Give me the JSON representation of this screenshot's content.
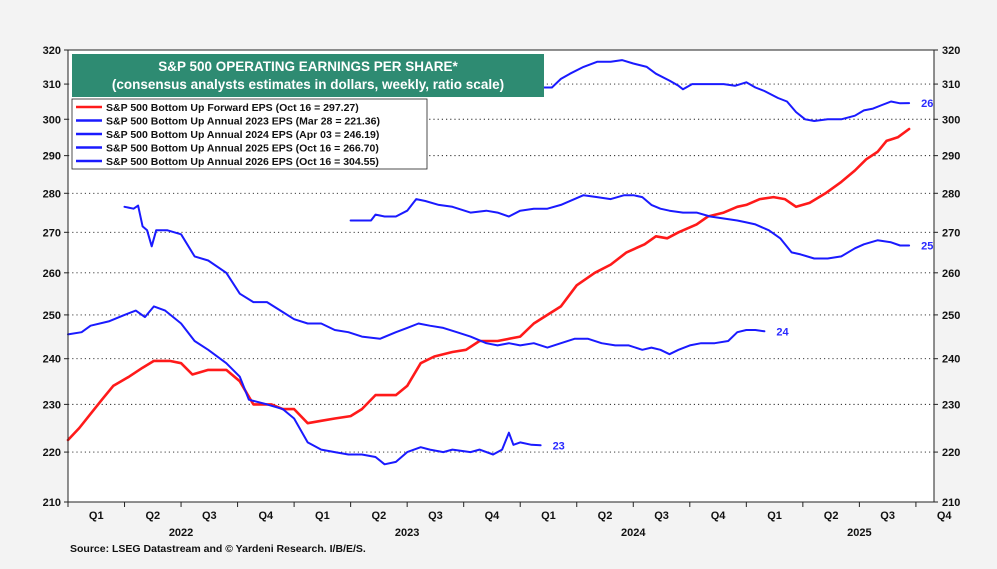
{
  "colors": {
    "forward": "#ff1a1a",
    "annual": "#1a1aff",
    "title_bg": "#2e8b72",
    "label": "#2a2aff"
  },
  "chart_data": {
    "type": "line",
    "title": "S&P 500 OPERATING EARNINGS PER SHARE*",
    "subtitle": "(consensus analysts estimates in dollars, weekly, ratio scale)",
    "source": "Source: LSEG Datastream and © Yardeni Research. I/B/E/S.",
    "ylim": [
      210,
      320
    ],
    "yticks": [
      210,
      220,
      230,
      240,
      250,
      260,
      270,
      280,
      290,
      300,
      310,
      320
    ],
    "y_scale": "ratio",
    "xlim": [
      2022.0,
      2025.83
    ],
    "quarters": [
      {
        "label": "Q1",
        "x": 2022.125
      },
      {
        "label": "Q2",
        "x": 2022.375
      },
      {
        "label": "Q3",
        "x": 2022.625
      },
      {
        "label": "Q4",
        "x": 2022.875
      },
      {
        "label": "Q1",
        "x": 2023.125
      },
      {
        "label": "Q2",
        "x": 2023.375
      },
      {
        "label": "Q3",
        "x": 2023.625
      },
      {
        "label": "Q4",
        "x": 2023.875
      },
      {
        "label": "Q1",
        "x": 2024.125
      },
      {
        "label": "Q2",
        "x": 2024.375
      },
      {
        "label": "Q3",
        "x": 2024.625
      },
      {
        "label": "Q4",
        "x": 2024.875
      },
      {
        "label": "Q1",
        "x": 2025.125
      },
      {
        "label": "Q2",
        "x": 2025.375
      },
      {
        "label": "Q3",
        "x": 2025.625
      },
      {
        "label": "Q4",
        "x": 2025.875
      }
    ],
    "quarter_bounds": [
      2022.0,
      2022.25,
      2022.5,
      2022.75,
      2023.0,
      2023.25,
      2023.5,
      2023.75,
      2024.0,
      2024.25,
      2024.5,
      2024.75,
      2025.0,
      2025.25,
      2025.5,
      2025.75
    ],
    "years": [
      {
        "label": "2022",
        "x": 2022.5
      },
      {
        "label": "2023",
        "x": 2023.5
      },
      {
        "label": "2024",
        "x": 2024.5
      },
      {
        "label": "2025",
        "x": 2025.5
      }
    ],
    "legend_placement": "top-left",
    "series": [
      {
        "name": "S&P 500 Bottom Up Forward EPS (Oct 16 = 297.27)",
        "color": "#ff1a1a",
        "end_label": "",
        "points": [
          [
            2022.0,
            222.5
          ],
          [
            2022.05,
            225
          ],
          [
            2022.1,
            228
          ],
          [
            2022.15,
            231
          ],
          [
            2022.2,
            234
          ],
          [
            2022.27,
            236
          ],
          [
            2022.33,
            238
          ],
          [
            2022.38,
            239.5
          ],
          [
            2022.45,
            239.5
          ],
          [
            2022.5,
            239
          ],
          [
            2022.55,
            236.5
          ],
          [
            2022.62,
            237.5
          ],
          [
            2022.7,
            237.5
          ],
          [
            2022.76,
            235
          ],
          [
            2022.82,
            230
          ],
          [
            2022.9,
            230
          ],
          [
            2022.95,
            229
          ],
          [
            2023.0,
            229
          ],
          [
            2023.06,
            226
          ],
          [
            2023.12,
            226.5
          ],
          [
            2023.18,
            227
          ],
          [
            2023.25,
            227.5
          ],
          [
            2023.3,
            229
          ],
          [
            2023.36,
            232
          ],
          [
            2023.45,
            232
          ],
          [
            2023.5,
            234
          ],
          [
            2023.56,
            239
          ],
          [
            2023.62,
            240.5
          ],
          [
            2023.7,
            241.5
          ],
          [
            2023.76,
            242
          ],
          [
            2023.82,
            244
          ],
          [
            2023.9,
            244
          ],
          [
            2024.0,
            245
          ],
          [
            2024.06,
            248
          ],
          [
            2024.12,
            250
          ],
          [
            2024.18,
            252
          ],
          [
            2024.25,
            257
          ],
          [
            2024.33,
            260
          ],
          [
            2024.4,
            262
          ],
          [
            2024.47,
            265
          ],
          [
            2024.55,
            267
          ],
          [
            2024.6,
            269
          ],
          [
            2024.65,
            268.5
          ],
          [
            2024.7,
            270
          ],
          [
            2024.78,
            272
          ],
          [
            2024.83,
            274
          ],
          [
            2024.9,
            275
          ],
          [
            2024.96,
            276.5
          ],
          [
            2025.0,
            277
          ],
          [
            2025.06,
            278.5
          ],
          [
            2025.12,
            279
          ],
          [
            2025.17,
            278.5
          ],
          [
            2025.22,
            276.5
          ],
          [
            2025.28,
            277.5
          ],
          [
            2025.35,
            280
          ],
          [
            2025.42,
            283
          ],
          [
            2025.48,
            286
          ],
          [
            2025.53,
            289
          ],
          [
            2025.58,
            291
          ],
          [
            2025.62,
            294
          ],
          [
            2025.67,
            295
          ],
          [
            2025.72,
            297.3
          ]
        ]
      },
      {
        "name": "S&P 500 Bottom Up Annual 2023 EPS (Mar 28 = 221.36)",
        "color": "#1a1aff",
        "end_label": "23",
        "points": [
          [
            2022.0,
            245.5
          ],
          [
            2022.06,
            246
          ],
          [
            2022.1,
            247.5
          ],
          [
            2022.18,
            248.5
          ],
          [
            2022.25,
            250
          ],
          [
            2022.3,
            251
          ],
          [
            2022.34,
            249.5
          ],
          [
            2022.38,
            252
          ],
          [
            2022.43,
            251
          ],
          [
            2022.5,
            248
          ],
          [
            2022.56,
            244
          ],
          [
            2022.62,
            242
          ],
          [
            2022.7,
            239
          ],
          [
            2022.76,
            236
          ],
          [
            2022.8,
            231
          ],
          [
            2022.88,
            230
          ],
          [
            2022.95,
            229
          ],
          [
            2023.0,
            227
          ],
          [
            2023.06,
            222
          ],
          [
            2023.12,
            220.5
          ],
          [
            2023.18,
            220
          ],
          [
            2023.24,
            219.5
          ],
          [
            2023.3,
            219.5
          ],
          [
            2023.36,
            219
          ],
          [
            2023.4,
            217.5
          ],
          [
            2023.45,
            218
          ],
          [
            2023.5,
            220
          ],
          [
            2023.56,
            221
          ],
          [
            2023.6,
            220.5
          ],
          [
            2023.66,
            220
          ],
          [
            2023.7,
            220.5
          ],
          [
            2023.78,
            220
          ],
          [
            2023.82,
            220.5
          ],
          [
            2023.88,
            219.5
          ],
          [
            2023.92,
            220.5
          ],
          [
            2023.95,
            224
          ],
          [
            2023.97,
            221.5
          ],
          [
            2024.0,
            222
          ],
          [
            2024.05,
            221.5
          ],
          [
            2024.09,
            221.4
          ]
        ]
      },
      {
        "name": "S&P 500 Bottom Up Annual 2024 EPS (Apr 03 = 246.19)",
        "color": "#1a1aff",
        "end_label": "24",
        "points": [
          [
            2022.25,
            276.5
          ],
          [
            2022.29,
            276
          ],
          [
            2022.31,
            276.8
          ],
          [
            2022.33,
            271.5
          ],
          [
            2022.35,
            270.5
          ],
          [
            2022.37,
            266.5
          ],
          [
            2022.39,
            270.5
          ],
          [
            2022.44,
            270.5
          ],
          [
            2022.5,
            269.5
          ],
          [
            2022.56,
            264
          ],
          [
            2022.62,
            263
          ],
          [
            2022.7,
            260
          ],
          [
            2022.76,
            255
          ],
          [
            2022.82,
            253
          ],
          [
            2022.88,
            253
          ],
          [
            2022.94,
            251
          ],
          [
            2023.0,
            249
          ],
          [
            2023.06,
            248
          ],
          [
            2023.12,
            248
          ],
          [
            2023.18,
            246.5
          ],
          [
            2023.24,
            246
          ],
          [
            2023.3,
            245
          ],
          [
            2023.38,
            244.5
          ],
          [
            2023.45,
            246
          ],
          [
            2023.5,
            247
          ],
          [
            2023.55,
            248
          ],
          [
            2023.6,
            247.5
          ],
          [
            2023.66,
            247
          ],
          [
            2023.72,
            246
          ],
          [
            2023.78,
            245
          ],
          [
            2023.85,
            243.5
          ],
          [
            2023.9,
            243
          ],
          [
            2023.95,
            243.5
          ],
          [
            2024.0,
            243
          ],
          [
            2024.06,
            243.5
          ],
          [
            2024.12,
            242.5
          ],
          [
            2024.18,
            243.5
          ],
          [
            2024.24,
            244.5
          ],
          [
            2024.3,
            244.5
          ],
          [
            2024.36,
            243.5
          ],
          [
            2024.42,
            243
          ],
          [
            2024.48,
            243
          ],
          [
            2024.54,
            242
          ],
          [
            2024.58,
            242.5
          ],
          [
            2024.62,
            242
          ],
          [
            2024.66,
            241
          ],
          [
            2024.7,
            242
          ],
          [
            2024.75,
            243
          ],
          [
            2024.8,
            243.5
          ],
          [
            2024.86,
            243.5
          ],
          [
            2024.92,
            244
          ],
          [
            2024.96,
            246
          ],
          [
            2025.0,
            246.5
          ],
          [
            2025.04,
            246.5
          ],
          [
            2025.08,
            246.2
          ]
        ]
      },
      {
        "name": "S&P 500 Bottom Up Annual 2025 EPS (Oct 16 = 266.70)",
        "color": "#1a1aff",
        "end_label": "25",
        "points": [
          [
            2023.25,
            273
          ],
          [
            2023.3,
            273
          ],
          [
            2023.34,
            273
          ],
          [
            2023.36,
            274.5
          ],
          [
            2023.4,
            274
          ],
          [
            2023.45,
            274
          ],
          [
            2023.5,
            275.5
          ],
          [
            2023.54,
            278.5
          ],
          [
            2023.58,
            278
          ],
          [
            2023.64,
            277
          ],
          [
            2023.7,
            276.5
          ],
          [
            2023.78,
            275
          ],
          [
            2023.85,
            275.5
          ],
          [
            2023.9,
            275
          ],
          [
            2023.95,
            274
          ],
          [
            2024.0,
            275.5
          ],
          [
            2024.06,
            276
          ],
          [
            2024.12,
            276
          ],
          [
            2024.18,
            277
          ],
          [
            2024.24,
            278.5
          ],
          [
            2024.28,
            279.5
          ],
          [
            2024.34,
            279
          ],
          [
            2024.4,
            278.5
          ],
          [
            2024.46,
            279.5
          ],
          [
            2024.5,
            279.5
          ],
          [
            2024.54,
            279
          ],
          [
            2024.58,
            277
          ],
          [
            2024.62,
            276
          ],
          [
            2024.66,
            275.5
          ],
          [
            2024.72,
            275
          ],
          [
            2024.78,
            275
          ],
          [
            2024.84,
            274
          ],
          [
            2024.9,
            273.5
          ],
          [
            2024.96,
            273
          ],
          [
            2025.0,
            272.5
          ],
          [
            2025.04,
            272
          ],
          [
            2025.1,
            270.5
          ],
          [
            2025.15,
            268.5
          ],
          [
            2025.2,
            265
          ],
          [
            2025.24,
            264.5
          ],
          [
            2025.3,
            263.5
          ],
          [
            2025.36,
            263.5
          ],
          [
            2025.42,
            264
          ],
          [
            2025.48,
            266
          ],
          [
            2025.52,
            267
          ],
          [
            2025.58,
            268
          ],
          [
            2025.64,
            267.5
          ],
          [
            2025.68,
            266.7
          ],
          [
            2025.72,
            266.7
          ]
        ]
      },
      {
        "name": "S&P 500 Bottom Up Annual 2026 EPS (Oct 16 = 304.55)",
        "color": "#1a1aff",
        "end_label": "26",
        "points": [
          [
            2024.1,
            309
          ],
          [
            2024.14,
            309
          ],
          [
            2024.18,
            311.5
          ],
          [
            2024.22,
            313
          ],
          [
            2024.28,
            315
          ],
          [
            2024.34,
            316.5
          ],
          [
            2024.4,
            316.5
          ],
          [
            2024.45,
            317
          ],
          [
            2024.5,
            316
          ],
          [
            2024.56,
            315
          ],
          [
            2024.6,
            313
          ],
          [
            2024.66,
            311
          ],
          [
            2024.7,
            309.5
          ],
          [
            2024.72,
            308.5
          ],
          [
            2024.76,
            310
          ],
          [
            2024.82,
            310
          ],
          [
            2024.9,
            310
          ],
          [
            2024.95,
            309.5
          ],
          [
            2025.0,
            310.5
          ],
          [
            2025.04,
            309
          ],
          [
            2025.08,
            308
          ],
          [
            2025.14,
            306
          ],
          [
            2025.18,
            305
          ],
          [
            2025.22,
            302
          ],
          [
            2025.26,
            300
          ],
          [
            2025.3,
            299.5
          ],
          [
            2025.36,
            300
          ],
          [
            2025.42,
            300
          ],
          [
            2025.48,
            301
          ],
          [
            2025.52,
            302.5
          ],
          [
            2025.56,
            303
          ],
          [
            2025.6,
            304
          ],
          [
            2025.64,
            305
          ],
          [
            2025.68,
            304.5
          ],
          [
            2025.72,
            304.55
          ]
        ]
      }
    ]
  }
}
